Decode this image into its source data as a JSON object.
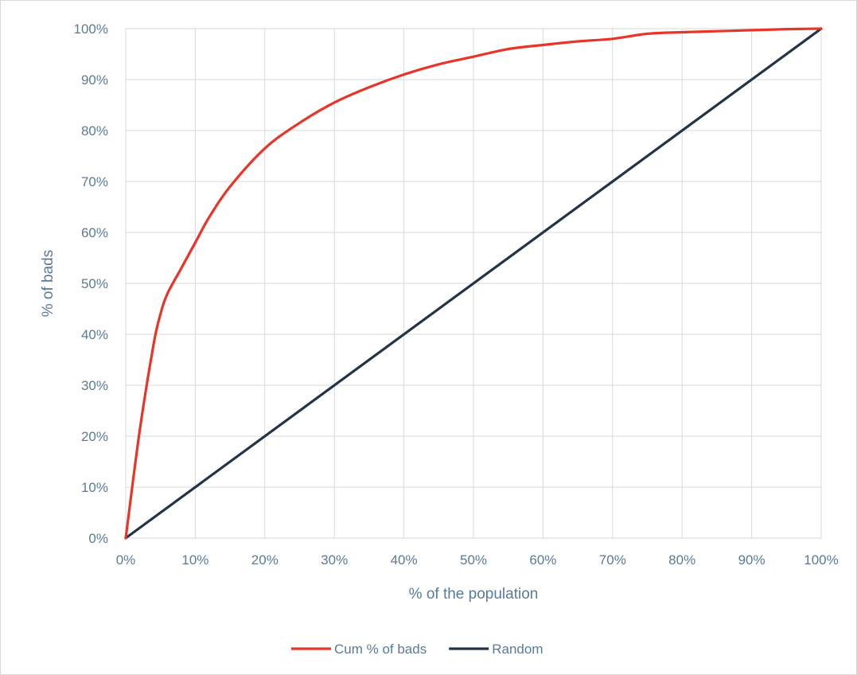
{
  "chart_data": {
    "type": "line",
    "title": "",
    "xlabel": "% of the population",
    "ylabel": "% of bads",
    "xlim": [
      0,
      100
    ],
    "ylim": [
      0,
      100
    ],
    "x_ticks": [
      "0%",
      "10%",
      "20%",
      "30%",
      "40%",
      "50%",
      "60%",
      "70%",
      "80%",
      "90%",
      "100%"
    ],
    "y_ticks": [
      "0%",
      "10%",
      "20%",
      "30%",
      "40%",
      "50%",
      "60%",
      "70%",
      "80%",
      "90%",
      "100%"
    ],
    "grid": true,
    "legend_position": "bottom",
    "series": [
      {
        "name": "Cum % of bads",
        "color": "#e8352a",
        "x": [
          0,
          2,
          4,
          5,
          6,
          8,
          10,
          12,
          15,
          20,
          25,
          30,
          35,
          40,
          45,
          50,
          55,
          60,
          65,
          70,
          75,
          80,
          85,
          90,
          95,
          100
        ],
        "y": [
          0,
          21,
          38,
          44,
          48,
          53,
          58,
          63,
          69,
          76.5,
          81.5,
          85.5,
          88.5,
          91,
          93,
          94.5,
          96,
          96.8,
          97.5,
          98,
          99,
          99.3,
          99.5,
          99.7,
          99.9,
          100
        ]
      },
      {
        "name": "Random",
        "color": "#243447",
        "x": [
          0,
          100
        ],
        "y": [
          0,
          100
        ]
      }
    ]
  }
}
